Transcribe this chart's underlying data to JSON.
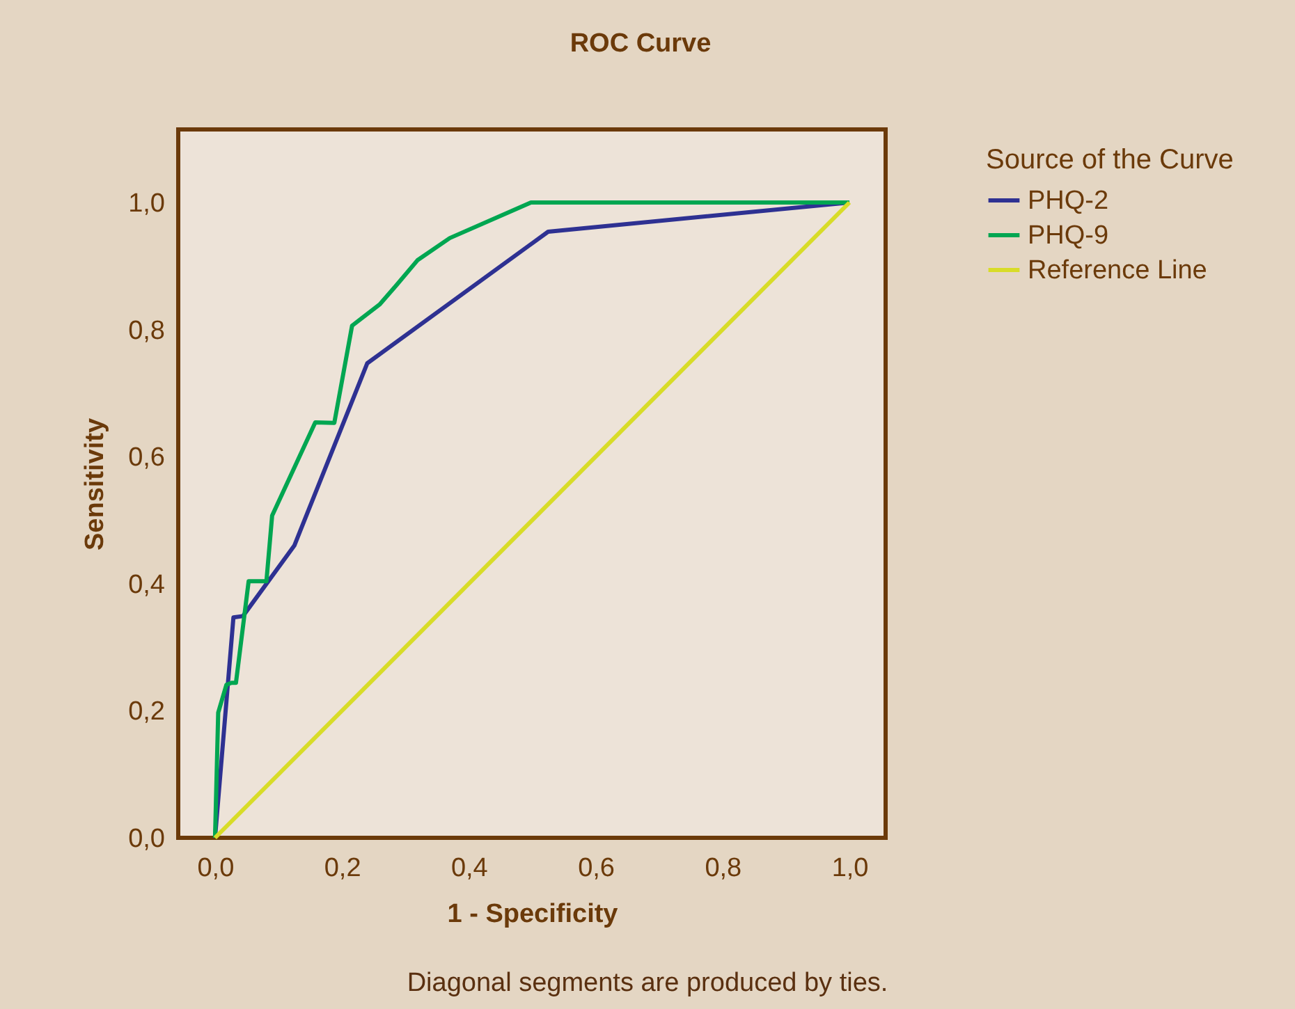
{
  "chart_data": {
    "type": "line",
    "title": "ROC Curve",
    "xlabel": "1 - Specificity",
    "ylabel": "Sensitivity",
    "legend_title": "Source of the Curve",
    "annotations": [
      "Diagonal segments are produced by ties."
    ],
    "xlim": [
      -0.058,
      1.057
    ],
    "ylim": [
      0,
      1.115
    ],
    "xticks": [
      {
        "value": 0,
        "label": "0,0"
      },
      {
        "value": 0.2,
        "label": "0,2"
      },
      {
        "value": 0.4,
        "label": "0,4"
      },
      {
        "value": 0.6,
        "label": "0,6"
      },
      {
        "value": 0.8,
        "label": "0,8"
      },
      {
        "value": 1,
        "label": "1,0"
      }
    ],
    "yticks": [
      {
        "value": 0,
        "label": "0,0"
      },
      {
        "value": 0.2,
        "label": "0,2"
      },
      {
        "value": 0.4,
        "label": "0,4"
      },
      {
        "value": 0.6,
        "label": "0,6"
      },
      {
        "value": 0.8,
        "label": "0,8"
      },
      {
        "value": 1,
        "label": "1,0"
      }
    ],
    "grid": false,
    "legend": "right",
    "marker": "none",
    "line_style": "solid",
    "series": [
      {
        "name": "PHQ-2",
        "color": "#2e3192",
        "x": [
          0,
          0.029,
          0.044,
          0.125,
          0.24,
          0.525,
          1
        ],
        "values": [
          0,
          0.347,
          0.349,
          0.46,
          0.747,
          0.954,
          1
        ]
      },
      {
        "name": "PHQ-9",
        "color": "#00a651",
        "x": [
          0,
          0.005,
          0.018,
          0.026,
          0.033,
          0.053,
          0.081,
          0.09,
          0.158,
          0.188,
          0.216,
          0.26,
          0.286,
          0.319,
          0.37,
          0.473,
          0.498,
          1
        ],
        "values": [
          0,
          0.197,
          0.241,
          0.244,
          0.244,
          0.404,
          0.404,
          0.507,
          0.654,
          0.653,
          0.806,
          0.84,
          0.87,
          0.909,
          0.944,
          0.989,
          1,
          1
        ]
      },
      {
        "name": "Reference Line",
        "color": "#d8dc28",
        "x": [
          0,
          1
        ],
        "values": [
          0,
          1
        ]
      }
    ]
  }
}
